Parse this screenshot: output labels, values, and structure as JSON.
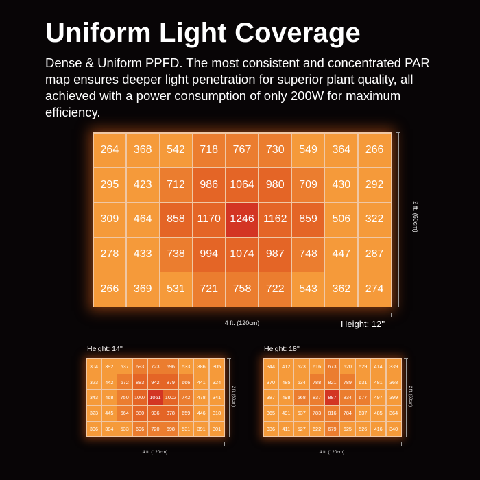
{
  "title": "Uniform Light Coverage",
  "description": "Dense & Uniform PPFD. The most consistent and concentrated PAR map ensures deeper light penetration for superior plant quality, all achieved with a power consumption of only 200W for maximum efficiency.",
  "colors": {
    "background": "#080506",
    "grid_line": "#f0c7a4",
    "low": "#f59a3a",
    "mid": "#eb7d2f",
    "high": "#e46526",
    "peak": "#d33523"
  },
  "maps": [
    {
      "height_label": "Height: 12''",
      "width_label": "4 ft. (120cm)",
      "depth_label": "2 ft. (60cm)",
      "rows": [
        [
          264,
          368,
          542,
          718,
          767,
          730,
          549,
          364,
          266
        ],
        [
          295,
          423,
          712,
          986,
          1064,
          980,
          709,
          430,
          292
        ],
        [
          309,
          464,
          858,
          1170,
          1246,
          1162,
          859,
          506,
          322
        ],
        [
          278,
          433,
          738,
          994,
          1074,
          987,
          748,
          447,
          287
        ],
        [
          266,
          369,
          531,
          721,
          758,
          722,
          543,
          362,
          274
        ]
      ]
    },
    {
      "height_label": "Height: 14''",
      "width_label": "4 ft. (120cm)",
      "depth_label": "2 ft. (60cm)",
      "rows": [
        [
          304,
          392,
          537,
          693,
          723,
          696,
          533,
          386,
          305
        ],
        [
          323,
          442,
          672,
          883,
          942,
          879,
          666,
          441,
          324
        ],
        [
          343,
          468,
          750,
          1007,
          1061,
          1002,
          742,
          478,
          341
        ],
        [
          323,
          445,
          664,
          880,
          936,
          878,
          659,
          446,
          318
        ],
        [
          306,
          384,
          533,
          696,
          720,
          698,
          531,
          391,
          301
        ]
      ]
    },
    {
      "height_label": "Height: 18''",
      "width_label": "4 ft. (120cm)",
      "depth_label": "2 ft. (60cm)",
      "rows": [
        [
          344,
          412,
          523,
          616,
          673,
          620,
          529,
          414,
          339
        ],
        [
          370,
          485,
          634,
          788,
          821,
          789,
          631,
          481,
          368
        ],
        [
          387,
          498,
          668,
          837,
          887,
          834,
          677,
          497,
          399
        ],
        [
          365,
          491,
          637,
          783,
          816,
          784,
          637,
          485,
          364
        ],
        [
          336,
          411,
          527,
          622,
          679,
          625,
          526,
          416,
          340
        ]
      ]
    }
  ]
}
